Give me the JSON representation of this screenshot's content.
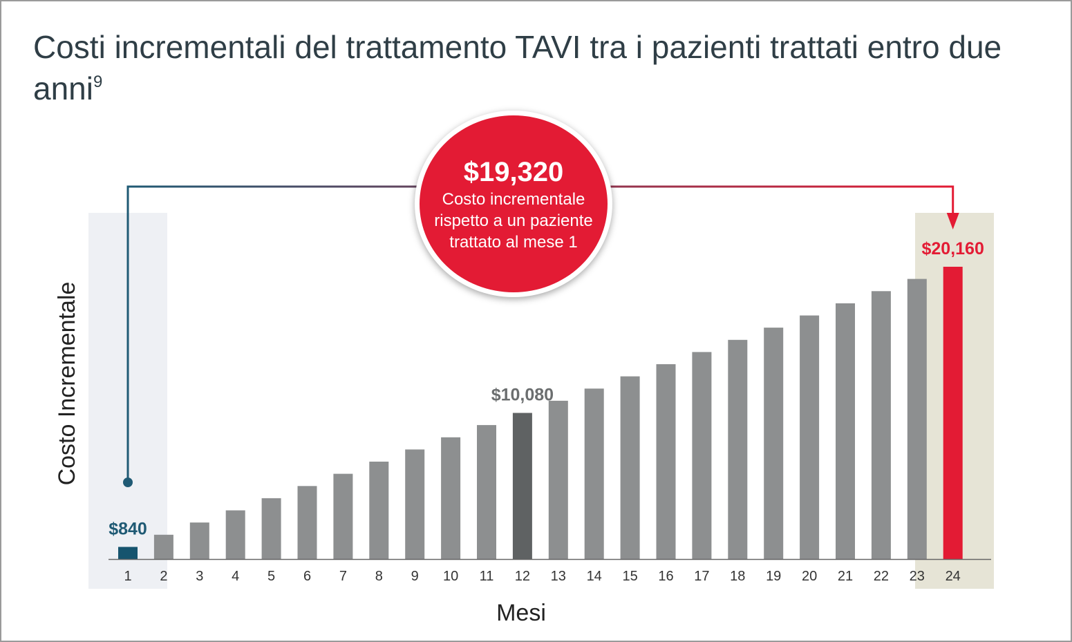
{
  "title": "Costi incrementali del trattamento TAVI tra i pazienti trattati entro due anni",
  "title_superscript": "9",
  "callout": {
    "value": "$19,320",
    "text": "Costo incrementale rispetto a un paziente trattato al mese 1"
  },
  "colors": {
    "bar": "#8d8f90",
    "bar_month_1": "#16546e",
    "bar_month_12": "#5f6263",
    "bar_month_24": "#e31b34",
    "highlight_month_1": "#eef0f4",
    "highlight_month_24": "#e6e4d6",
    "connector_start": "#1f5a74",
    "connector_end": "#e31b34",
    "label_month_1": "#1f5a74",
    "label_month_12": "#6b6e6f",
    "label_month_24": "#e31b34"
  },
  "chart_data": {
    "type": "bar",
    "title": "Costi incrementali del trattamento TAVI tra i pazienti trattati entro due anni",
    "xlabel": "Mesi",
    "ylabel": "Costo Incrementale",
    "categories": [
      "1",
      "2",
      "3",
      "4",
      "5",
      "6",
      "7",
      "8",
      "9",
      "10",
      "11",
      "12",
      "13",
      "14",
      "15",
      "16",
      "17",
      "18",
      "19",
      "20",
      "21",
      "22",
      "23",
      "24"
    ],
    "values": [
      840,
      1680,
      2520,
      3360,
      4200,
      5040,
      5880,
      6720,
      7560,
      8400,
      9240,
      10080,
      10920,
      11760,
      12600,
      13440,
      14280,
      15120,
      15960,
      16800,
      17640,
      18480,
      19320,
      20160
    ],
    "ylim": [
      0,
      20160
    ],
    "grid": false,
    "data_labels": [
      {
        "month": "1",
        "text": "$840"
      },
      {
        "month": "12",
        "text": "$10,080"
      },
      {
        "month": "24",
        "text": "$20,160"
      }
    ],
    "highlighted_months": [
      "1",
      "24"
    ]
  }
}
